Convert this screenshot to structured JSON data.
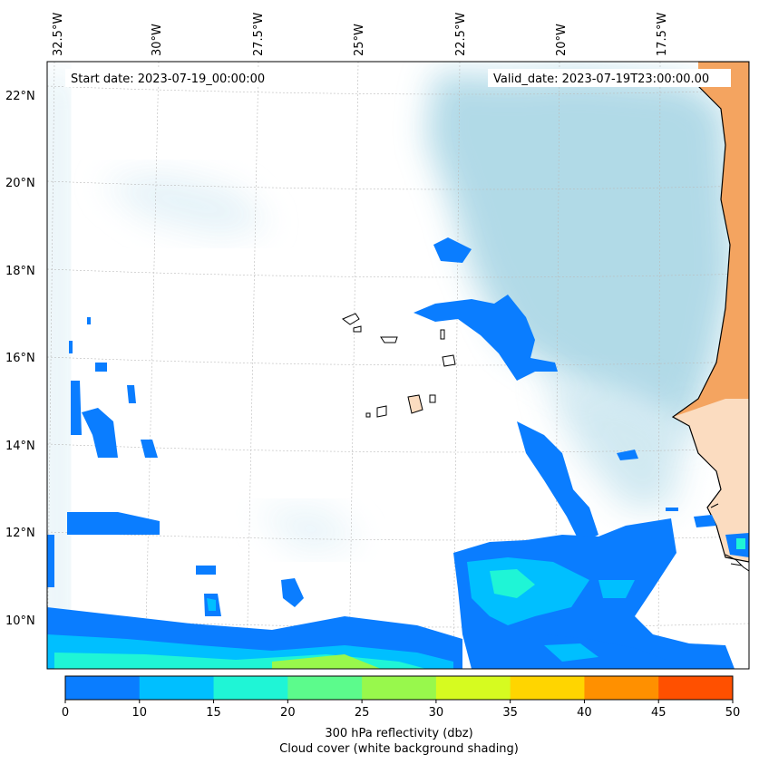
{
  "map": {
    "start_label": "Start date: 2023-07-19_00:00:00",
    "valid_label": "Valid_date: 2023-07-19T23:00:00.00",
    "lon_labels": [
      "32.5°W",
      "30°W",
      "27.5°W",
      "25°W",
      "22.5°W",
      "20°W",
      "17.5°W"
    ],
    "lat_labels": [
      "22°N",
      "20°N",
      "18°N",
      "16°N",
      "14°N",
      "12°N",
      "10°N"
    ],
    "colorbar": {
      "ticks": [
        "0",
        "10",
        "15",
        "20",
        "25",
        "30",
        "35",
        "40",
        "45",
        "50"
      ],
      "colors": [
        "#0a7dff",
        "#00bfff",
        "#1ff5d6",
        "#5cfb8c",
        "#98f84c",
        "#d6fb20",
        "#ffd500",
        "#ff9000",
        "#ff5000"
      ],
      "label_line1": "300 hPa reflectivity (dbz)",
      "label_line2": "Cloud cover (white background shading)"
    },
    "palette": {
      "cloud": "#add8e6",
      "land": "#f4a460",
      "reflect_low": "#0a7dff",
      "reflect_mid": "#00bfff",
      "reflect_high": "#1ff5d6",
      "reflect_top": "#98f84c"
    }
  }
}
